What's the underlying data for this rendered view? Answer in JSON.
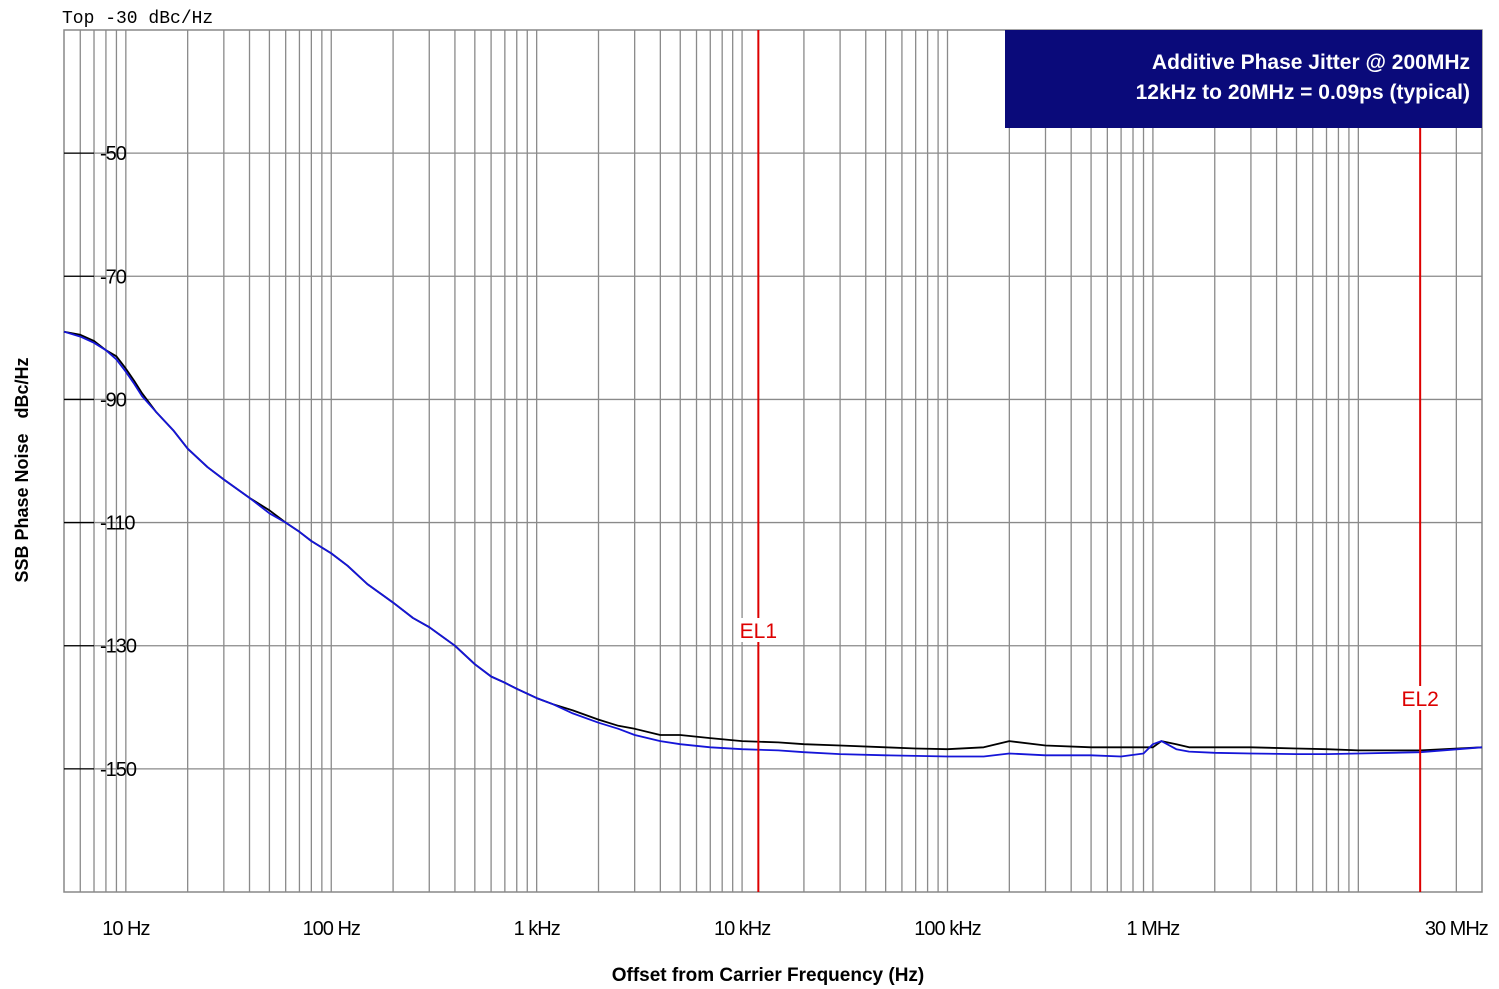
{
  "chart_data": {
    "type": "line",
    "top_label": "Top -30 dBc/Hz",
    "ylabel": "SSB Phase Noise   dBc/Hz",
    "xlabel": "Offset from Carrier Frequency (Hz)",
    "x_scale": "log",
    "xlim": [
      5,
      40000000
    ],
    "ylim": [
      -170,
      -30
    ],
    "y_ticks": [
      -50,
      -70,
      -90,
      -110,
      -130,
      -150
    ],
    "x_tick_labels": [
      {
        "value": 10,
        "label": "10 Hz"
      },
      {
        "value": 100,
        "label": "100 Hz"
      },
      {
        "value": 1000,
        "label": "1 kHz"
      },
      {
        "value": 10000,
        "label": "10 kHz"
      },
      {
        "value": 100000,
        "label": "100 kHz"
      },
      {
        "value": 1000000,
        "label": "1 MHz"
      },
      {
        "value": 30000000,
        "label": "30 MHz"
      }
    ],
    "grid": true,
    "markers": [
      {
        "label": "EL1",
        "x": 12000,
        "color": "#dd0000"
      },
      {
        "label": "EL2",
        "x": 20000000,
        "color": "#dd0000"
      }
    ],
    "annotation": {
      "line1": "Additive Phase Jitter @ 200MHz",
      "line2": "12kHz to 20MHz = 0.09ps (typical)",
      "background": "#0a0a7a"
    },
    "series": [
      {
        "color": "#000000",
        "points": [
          [
            5,
            -79
          ],
          [
            6,
            -79.5
          ],
          [
            7,
            -80.5
          ],
          [
            8,
            -82
          ],
          [
            9,
            -83
          ],
          [
            10,
            -85
          ],
          [
            11,
            -87
          ],
          [
            12,
            -89
          ],
          [
            14,
            -92
          ],
          [
            17,
            -95
          ],
          [
            20,
            -98
          ],
          [
            25,
            -101
          ],
          [
            30,
            -103
          ],
          [
            40,
            -106
          ],
          [
            50,
            -108
          ],
          [
            60,
            -110
          ],
          [
            70,
            -111.5
          ],
          [
            80,
            -113
          ],
          [
            100,
            -115
          ],
          [
            120,
            -117
          ],
          [
            150,
            -120
          ],
          [
            200,
            -123
          ],
          [
            250,
            -125.5
          ],
          [
            300,
            -127
          ],
          [
            400,
            -130
          ],
          [
            500,
            -133
          ],
          [
            600,
            -135
          ],
          [
            700,
            -136
          ],
          [
            800,
            -137
          ],
          [
            1000,
            -138.5
          ],
          [
            1200,
            -139.5
          ],
          [
            1500,
            -140.5
          ],
          [
            2000,
            -142
          ],
          [
            2500,
            -143
          ],
          [
            3000,
            -143.5
          ],
          [
            4000,
            -144.5
          ],
          [
            5000,
            -144.5
          ],
          [
            7000,
            -145
          ],
          [
            10000,
            -145.5
          ],
          [
            15000,
            -145.7
          ],
          [
            20000,
            -146
          ],
          [
            30000,
            -146.2
          ],
          [
            50000,
            -146.5
          ],
          [
            70000,
            -146.7
          ],
          [
            100000,
            -146.8
          ],
          [
            150000,
            -146.5
          ],
          [
            200000,
            -145.5
          ],
          [
            300000,
            -146.2
          ],
          [
            500000,
            -146.5
          ],
          [
            700000,
            -146.5
          ],
          [
            1000000,
            -146.5
          ],
          [
            1100000,
            -145.5
          ],
          [
            1300000,
            -146
          ],
          [
            1500000,
            -146.5
          ],
          [
            2000000,
            -146.5
          ],
          [
            3000000,
            -146.5
          ],
          [
            5000000,
            -146.7
          ],
          [
            7000000,
            -146.8
          ],
          [
            10000000,
            -147
          ],
          [
            20000000,
            -147
          ],
          [
            40000000,
            -146.5
          ]
        ]
      },
      {
        "color": "#1515d8",
        "points": [
          [
            5,
            -79
          ],
          [
            6,
            -79.8
          ],
          [
            7,
            -80.8
          ],
          [
            8,
            -82
          ],
          [
            9,
            -83.5
          ],
          [
            10,
            -85.5
          ],
          [
            11,
            -87.5
          ],
          [
            12,
            -89.5
          ],
          [
            14,
            -92
          ],
          [
            17,
            -95
          ],
          [
            20,
            -98
          ],
          [
            25,
            -101
          ],
          [
            30,
            -103
          ],
          [
            40,
            -106
          ],
          [
            50,
            -108.5
          ],
          [
            60,
            -110
          ],
          [
            70,
            -111.5
          ],
          [
            80,
            -113
          ],
          [
            100,
            -115
          ],
          [
            120,
            -117
          ],
          [
            150,
            -120
          ],
          [
            200,
            -123
          ],
          [
            250,
            -125.5
          ],
          [
            300,
            -127
          ],
          [
            400,
            -130
          ],
          [
            500,
            -133
          ],
          [
            600,
            -135
          ],
          [
            700,
            -136
          ],
          [
            800,
            -137
          ],
          [
            1000,
            -138.5
          ],
          [
            1200,
            -139.5
          ],
          [
            1500,
            -141
          ],
          [
            2000,
            -142.5
          ],
          [
            2500,
            -143.5
          ],
          [
            3000,
            -144.5
          ],
          [
            4000,
            -145.5
          ],
          [
            5000,
            -146
          ],
          [
            7000,
            -146.5
          ],
          [
            10000,
            -146.8
          ],
          [
            15000,
            -147
          ],
          [
            20000,
            -147.3
          ],
          [
            30000,
            -147.6
          ],
          [
            50000,
            -147.8
          ],
          [
            70000,
            -147.9
          ],
          [
            100000,
            -148
          ],
          [
            150000,
            -148
          ],
          [
            200000,
            -147.5
          ],
          [
            300000,
            -147.8
          ],
          [
            500000,
            -147.8
          ],
          [
            700000,
            -148
          ],
          [
            900000,
            -147.5
          ],
          [
            1000000,
            -146
          ],
          [
            1100000,
            -145.5
          ],
          [
            1300000,
            -146.8
          ],
          [
            1500000,
            -147.2
          ],
          [
            2000000,
            -147.4
          ],
          [
            3000000,
            -147.5
          ],
          [
            5000000,
            -147.6
          ],
          [
            7000000,
            -147.6
          ],
          [
            10000000,
            -147.5
          ],
          [
            20000000,
            -147.3
          ],
          [
            40000000,
            -146.5
          ]
        ]
      }
    ]
  }
}
